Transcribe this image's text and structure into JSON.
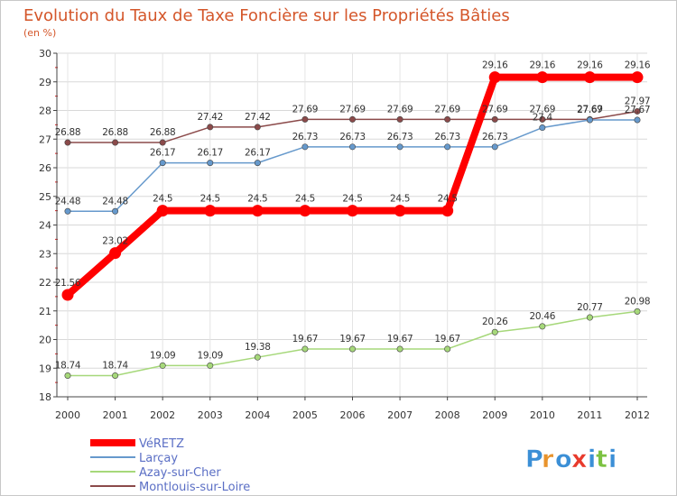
{
  "chart_data": {
    "type": "line",
    "title": "Evolution du Taux de Taxe Foncière sur les Propriétés Bâties",
    "subtitle": "(en %)",
    "xlabel": "",
    "ylabel": "",
    "x": [
      "2000",
      "2001",
      "2002",
      "2003",
      "2004",
      "2005",
      "2006",
      "2007",
      "2008",
      "2009",
      "2010",
      "2011",
      "2012"
    ],
    "ylim": [
      18,
      30
    ],
    "yticks": [
      "18",
      "19",
      "20",
      "21",
      "22",
      "23",
      "24",
      "25",
      "26",
      "27",
      "28",
      "29",
      "30"
    ],
    "grid": true,
    "legend_position": "bottom-left",
    "series": [
      {
        "name": "VéRETZ",
        "color": "#ff0000",
        "values": [
          21.56,
          23.02,
          24.5,
          24.5,
          24.5,
          24.5,
          24.5,
          24.5,
          24.5,
          29.16,
          29.16,
          29.16,
          29.16
        ],
        "labels": [
          "21.56",
          "23.02",
          "24.5",
          "24.5",
          "24.5",
          "24.5",
          "24.5",
          "24.5",
          "24.5",
          "29.16",
          "29.16",
          "29.16",
          "29.16"
        ]
      },
      {
        "name": "Larçay",
        "color": "#6699cc",
        "values": [
          24.48,
          24.48,
          26.17,
          26.17,
          26.17,
          26.73,
          26.73,
          26.73,
          26.73,
          26.73,
          27.4,
          27.67,
          27.67
        ],
        "labels": [
          "24.48",
          "24.48",
          "26.17",
          "26.17",
          "26.17",
          "26.73",
          "26.73",
          "26.73",
          "26.73",
          "26.73",
          "27.4",
          "27.67",
          "27.67"
        ]
      },
      {
        "name": "Azay-sur-Cher",
        "color": "#a6d87a",
        "values": [
          18.74,
          18.74,
          19.09,
          19.09,
          19.38,
          19.67,
          19.67,
          19.67,
          19.67,
          20.26,
          20.46,
          20.77,
          20.98
        ],
        "labels": [
          "18.74",
          "18.74",
          "19.09",
          "19.09",
          "19.38",
          "19.67",
          "19.67",
          "19.67",
          "19.67",
          "20.26",
          "20.46",
          "20.77",
          "20.98"
        ]
      },
      {
        "name": "Montlouis-sur-Loire",
        "color": "#8b4a4a",
        "values": [
          26.88,
          26.88,
          26.88,
          27.42,
          27.42,
          27.69,
          27.69,
          27.69,
          27.69,
          27.69,
          27.69,
          27.69,
          27.97
        ],
        "labels": [
          "26.88",
          "26.88",
          "26.88",
          "27.42",
          "27.42",
          "27.69",
          "27.69",
          "27.69",
          "27.69",
          "27.69",
          "27.69",
          "27.69",
          "27.97"
        ]
      }
    ]
  },
  "logo": {
    "letters": [
      "P",
      "r",
      "o",
      "x",
      "i",
      "t",
      "i"
    ],
    "colors": [
      "#3b8fd6",
      "#e8932c",
      "#3b8fd6",
      "#e83a2c",
      "#3b8fd6",
      "#7cc242",
      "#3b8fd6"
    ]
  }
}
